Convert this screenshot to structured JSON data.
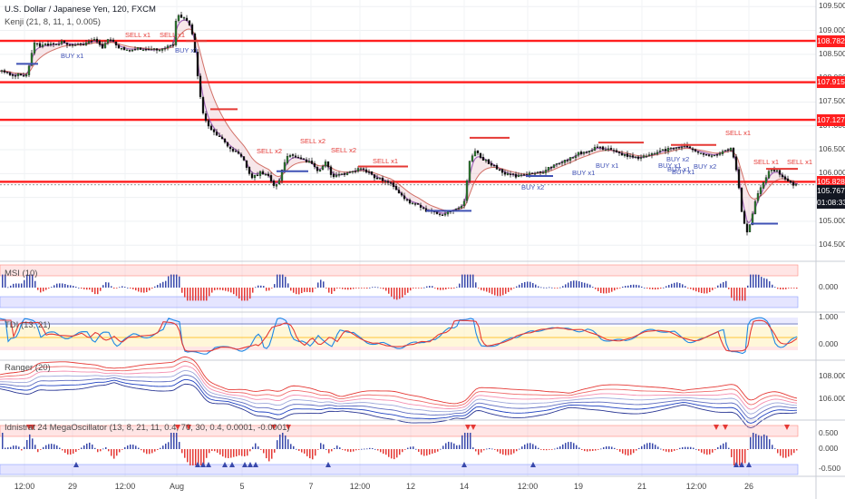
{
  "header": {
    "title": "U.S. Dollar / Japanese Yen, 120, FXCM",
    "indicator": "Kenji (21, 8, 11, 1, 0.005)"
  },
  "price_axis": {
    "labels": [
      "109.500",
      "109.000",
      "108.500",
      "108.000",
      "107.500",
      "107.000",
      "106.500",
      "106.000",
      "105.500",
      "105.000",
      "104.500"
    ],
    "levels": [
      {
        "value": "108.782",
        "color": "#ff1f1f"
      },
      {
        "value": "107.915",
        "color": "#ff1f1f"
      },
      {
        "value": "107.127",
        "color": "#ff1f1f"
      },
      {
        "value": "105.828",
        "color": "#ff1f1f"
      },
      {
        "value": "105.767",
        "color": "#131722"
      },
      {
        "value": "01:08:33",
        "color": "#131722"
      }
    ]
  },
  "x_axis": {
    "labels": [
      "12:00",
      "29",
      "12:00",
      "Aug",
      "5",
      "7",
      "12:00",
      "12",
      "14",
      "12:00",
      "19",
      "21",
      "12:00",
      "26"
    ]
  },
  "signals": [
    {
      "text": "SELL x1",
      "kind": "sell"
    },
    {
      "text": "SELL x1",
      "kind": "sell"
    },
    {
      "text": "BUY x1",
      "kind": "buy"
    },
    {
      "text": "BUY x1",
      "kind": "buy"
    },
    {
      "text": "SELL x2",
      "kind": "sell"
    },
    {
      "text": "SELL x2",
      "kind": "sell"
    },
    {
      "text": "SELL x2",
      "kind": "sell"
    },
    {
      "text": "SELL x1",
      "kind": "sell"
    },
    {
      "text": "BUY x2",
      "kind": "buy"
    },
    {
      "text": "BUY x1",
      "kind": "buy"
    },
    {
      "text": "BUY x1",
      "kind": "buy"
    },
    {
      "text": "BUY x2",
      "kind": "buy"
    },
    {
      "text": "BUY x1",
      "kind": "buy"
    },
    {
      "text": "BUY x1",
      "kind": "buy"
    },
    {
      "text": "BUY x1",
      "kind": "buy"
    },
    {
      "text": "BUY x2",
      "kind": "buy"
    },
    {
      "text": "SELL x1",
      "kind": "sell"
    },
    {
      "text": "SELL x1",
      "kind": "sell"
    },
    {
      "text": "SELL x1",
      "kind": "sell"
    }
  ],
  "panels": {
    "msi": {
      "label": "MSI (10)",
      "ticks": [
        "0.000"
      ]
    },
    "tdi": {
      "label": "TDI (13, 21)",
      "ticks": [
        "1.000",
        "0.000"
      ]
    },
    "ranger": {
      "label": "Ranger (20)",
      "ticks": [
        "108.000",
        "106.000"
      ]
    },
    "mega": {
      "label": "Idnistrat 24 MegaOscillator (13, 8, 21, 11, 0.4, 70, 30, 0.4, 0.0001, -0.0001)",
      "ticks": [
        "0.500",
        "0.000",
        "-0.500"
      ]
    }
  },
  "colors": {
    "bull": "#26a69a",
    "bear": "#ef5350",
    "wick": "#222",
    "level": "#ff1f1f",
    "buy": "#3f51b5",
    "sell": "#e53935"
  },
  "chart_data": [
    {
      "type": "candlestick",
      "title": "U.S. Dollar / Japanese Yen, 120, FXCM",
      "xlabel": "",
      "ylabel": "",
      "categories": [
        "12:00",
        "29",
        "12:00",
        "Aug",
        "5",
        "7",
        "12:00",
        "12",
        "14",
        "12:00",
        "19",
        "21",
        "12:00",
        "26"
      ],
      "ylim": [
        104.2,
        109.6
      ],
      "close_path": [
        [
          0,
          108.15
        ],
        [
          8,
          108.12
        ],
        [
          15,
          108.03
        ],
        [
          20,
          108.1
        ],
        [
          28,
          108.05
        ],
        [
          32,
          108.32
        ],
        [
          36,
          108.72
        ],
        [
          44,
          108.68
        ],
        [
          56,
          108.7
        ],
        [
          68,
          108.75
        ],
        [
          80,
          108.7
        ],
        [
          92,
          108.72
        ],
        [
          104,
          108.8
        ],
        [
          112,
          108.62
        ],
        [
          120,
          108.85
        ],
        [
          128,
          108.66
        ],
        [
          140,
          108.6
        ],
        [
          155,
          108.62
        ],
        [
          165,
          108.58
        ],
        [
          180,
          108.63
        ],
        [
          186,
          108.68
        ],
        [
          190,
          108.72
        ],
        [
          194,
          109.32
        ],
        [
          205,
          109.22
        ],
        [
          211,
          108.95
        ],
        [
          215,
          108.4
        ],
        [
          219,
          107.7
        ],
        [
          223,
          107.25
        ],
        [
          229,
          106.98
        ],
        [
          236,
          106.85
        ],
        [
          244,
          106.7
        ],
        [
          252,
          106.55
        ],
        [
          260,
          106.45
        ],
        [
          268,
          106.28
        ],
        [
          276,
          105.92
        ],
        [
          286,
          106.02
        ],
        [
          296,
          105.95
        ],
        [
          300,
          105.7
        ],
        [
          306,
          105.82
        ],
        [
          314,
          106.32
        ],
        [
          322,
          106.38
        ],
        [
          330,
          106.3
        ],
        [
          340,
          106.25
        ],
        [
          350,
          106.02
        ],
        [
          358,
          106.25
        ],
        [
          366,
          105.92
        ],
        [
          376,
          105.98
        ],
        [
          386,
          106.05
        ],
        [
          398,
          106.1
        ],
        [
          410,
          105.95
        ],
        [
          420,
          105.86
        ],
        [
          430,
          105.8
        ],
        [
          440,
          105.55
        ],
        [
          450,
          105.4
        ],
        [
          460,
          105.36
        ],
        [
          470,
          105.2
        ],
        [
          478,
          105.2
        ],
        [
          488,
          105.15
        ],
        [
          498,
          105.25
        ],
        [
          508,
          105.32
        ],
        [
          512,
          105.45
        ],
        [
          516,
          106.22
        ],
        [
          522,
          106.48
        ],
        [
          532,
          106.3
        ],
        [
          544,
          106.15
        ],
        [
          556,
          106.0
        ],
        [
          568,
          105.95
        ],
        [
          578,
          105.96
        ],
        [
          588,
          106.02
        ],
        [
          600,
          106.05
        ],
        [
          612,
          106.22
        ],
        [
          624,
          106.3
        ],
        [
          636,
          106.42
        ],
        [
          646,
          106.46
        ],
        [
          656,
          106.55
        ],
        [
          666,
          106.52
        ],
        [
          676,
          106.46
        ],
        [
          686,
          106.4
        ],
        [
          698,
          106.32
        ],
        [
          712,
          106.36
        ],
        [
          726,
          106.46
        ],
        [
          740,
          106.54
        ],
        [
          752,
          106.58
        ],
        [
          764,
          106.48
        ],
        [
          776,
          106.42
        ],
        [
          786,
          106.38
        ],
        [
          796,
          106.46
        ],
        [
          806,
          106.55
        ],
        [
          810,
          106.18
        ],
        [
          813,
          105.9
        ],
        [
          816,
          105.25
        ],
        [
          820,
          104.98
        ],
        [
          824,
          104.7
        ],
        [
          828,
          105.1
        ],
        [
          834,
          105.55
        ],
        [
          840,
          105.75
        ],
        [
          846,
          106.02
        ],
        [
          852,
          106.08
        ],
        [
          858,
          106.02
        ],
        [
          864,
          105.88
        ],
        [
          872,
          105.78
        ],
        [
          878,
          105.77
        ]
      ],
      "horizontal_levels": [
        108.782,
        107.915,
        107.127,
        105.828
      ],
      "current_price": 105.767,
      "countdown": "01:08:33"
    },
    {
      "type": "bar",
      "name": "MSI (10)",
      "ylim": [
        -1,
        1
      ]
    },
    {
      "type": "line",
      "name": "TDI (13, 21)",
      "ylim": [
        -0.3,
        1.1
      ]
    },
    {
      "type": "line",
      "name": "Ranger (20)",
      "ylim": [
        104.5,
        109.5
      ]
    },
    {
      "type": "bar",
      "name": "Idnistrat 24 MegaOscillator",
      "ylim": [
        -0.7,
        0.7
      ]
    }
  ]
}
